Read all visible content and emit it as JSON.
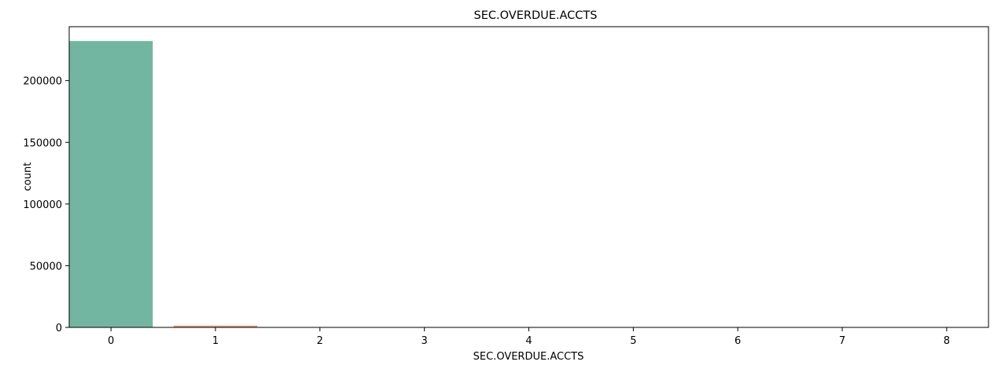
{
  "chart_data": {
    "type": "bar",
    "title": "SEC.OVERDUE.ACCTS",
    "xlabel": "SEC.OVERDUE.ACCTS",
    "ylabel": "count",
    "categories": [
      "0",
      "1",
      "2",
      "3",
      "4",
      "5",
      "6",
      "7",
      "8"
    ],
    "values": [
      232100,
      1450,
      160,
      40,
      20,
      10,
      5,
      3,
      2
    ],
    "colors": [
      "#72b6a1",
      "#e99675",
      "#95a3c3",
      "#db96c0",
      "#b5d36a",
      "#fdd960",
      "#dec79a",
      "#b3b3b3",
      "#72b6a1"
    ],
    "ylim": [
      0,
      243700
    ],
    "yticks": [
      0,
      50000,
      100000,
      150000,
      200000
    ],
    "grid": false,
    "legend": "none"
  }
}
